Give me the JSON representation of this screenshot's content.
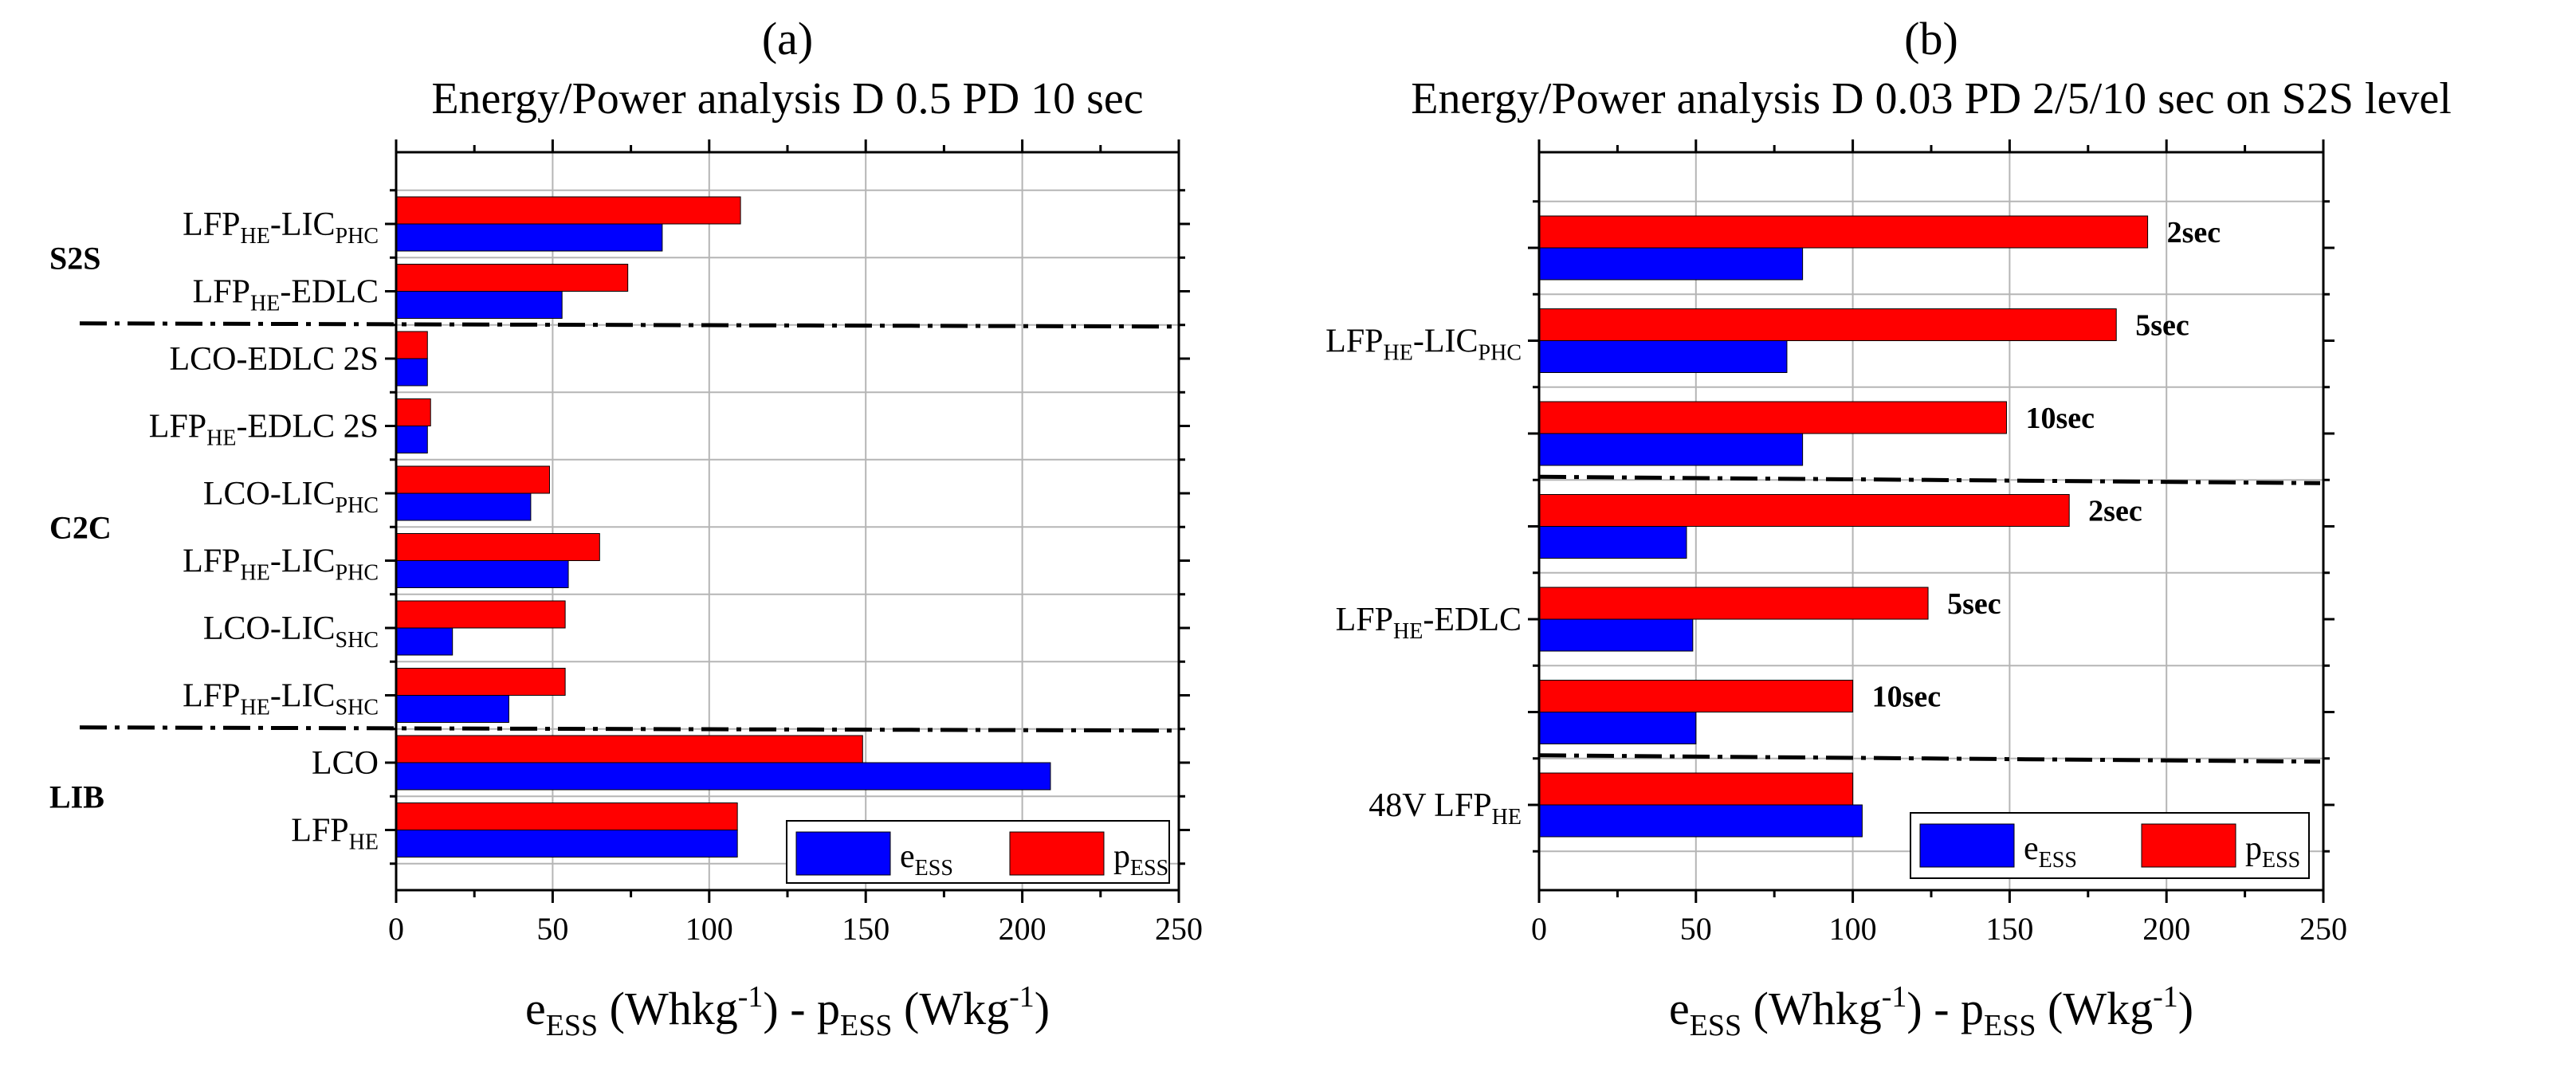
{
  "chart_data": [
    {
      "panel": "(a)",
      "type": "bar",
      "orientation": "horizontal",
      "title": "Energy/Power analysis D 0.5 PD 10 sec",
      "xlabel": {
        "e": "e",
        "e_sub": "ESS",
        "e_unit": " (Whkg",
        "e_exp": "-1",
        "mid": ") - p",
        "p_sub": "ESS",
        "p_unit": " (Wkg",
        "p_exp": "-1",
        "end": ")"
      },
      "xlim": [
        0,
        250
      ],
      "xticks": [
        0,
        50,
        100,
        150,
        200,
        250
      ],
      "grid": true,
      "legend": {
        "position": "bottom-right",
        "entries": [
          {
            "main": "e",
            "sub": "ESS",
            "color": "#0000ff"
          },
          {
            "main": "p",
            "sub": "ESS",
            "color": "#ff0000"
          }
        ]
      },
      "groups": [
        {
          "label": "S2S",
          "rows": [
            0,
            1
          ]
        },
        {
          "label": "C2C",
          "rows": [
            2,
            7
          ]
        },
        {
          "label": "LIB",
          "rows": [
            8,
            9
          ]
        }
      ],
      "separators_after_rows": [
        1,
        7
      ],
      "categories": [
        {
          "main": "LFP",
          "sub": "HE",
          "rest": "-LIC",
          "sub2": "PHC",
          "tail": ""
        },
        {
          "main": "LFP",
          "sub": "HE",
          "rest": "-EDLC",
          "sub2": "",
          "tail": ""
        },
        {
          "main": "LCO-EDLC 2S",
          "sub": "",
          "rest": "",
          "sub2": "",
          "tail": ""
        },
        {
          "main": "LFP",
          "sub": "HE",
          "rest": "-EDLC 2S",
          "sub2": "",
          "tail": ""
        },
        {
          "main": "LCO-LIC",
          "sub": "PHC",
          "rest": "",
          "sub2": "",
          "tail": ""
        },
        {
          "main": "LFP",
          "sub": "HE",
          "rest": "-LIC",
          "sub2": "PHC",
          "tail": ""
        },
        {
          "main": "LCO-LIC",
          "sub": "SHC",
          "rest": "",
          "sub2": "",
          "tail": ""
        },
        {
          "main": "LFP",
          "sub": "HE",
          "rest": "-LIC",
          "sub2": "SHC",
          "tail": ""
        },
        {
          "main": "LCO",
          "sub": "",
          "rest": "",
          "sub2": "",
          "tail": ""
        },
        {
          "main": "LFP",
          "sub": "HE",
          "rest": "",
          "sub2": "",
          "tail": ""
        }
      ],
      "series": [
        {
          "name": "pESS",
          "color": "#ff0000",
          "values": [
            110,
            74,
            10,
            11,
            49,
            65,
            54,
            54,
            149,
            109
          ]
        },
        {
          "name": "eESS",
          "color": "#0000ff",
          "values": [
            85,
            53,
            10,
            10,
            43,
            55,
            18,
            36,
            209,
            109
          ]
        }
      ]
    },
    {
      "panel": "(b)",
      "type": "bar",
      "orientation": "horizontal",
      "title": "Energy/Power analysis D 0.03 PD 2/5/10 sec on S2S level",
      "xlabel": {
        "e": "e",
        "e_sub": "ESS",
        "e_unit": " (Whkg",
        "e_exp": "-1",
        "mid": ") - p",
        "p_sub": "ESS",
        "p_unit": " (Wkg",
        "p_exp": "-1",
        "end": ")"
      },
      "xlim": [
        0,
        250
      ],
      "xticks": [
        0,
        50,
        100,
        150,
        200,
        250
      ],
      "grid": true,
      "legend": {
        "position": "bottom-right",
        "entries": [
          {
            "main": "e",
            "sub": "ESS",
            "color": "#0000ff"
          },
          {
            "main": "p",
            "sub": "ESS",
            "color": "#ff0000"
          }
        ]
      },
      "group_labels": [
        {
          "main": "LFP",
          "sub": "HE",
          "rest": "-LIC",
          "sub2": "PHC",
          "rows": [
            0,
            2
          ]
        },
        {
          "main": "LFP",
          "sub": "HE",
          "rest": "-EDLC",
          "sub2": "",
          "rows": [
            3,
            5
          ]
        },
        {
          "main": "48V LFP",
          "sub": "HE",
          "rest": "",
          "sub2": "",
          "rows": [
            6,
            6
          ]
        }
      ],
      "separators_after_rows": [
        2,
        5
      ],
      "row_labels": [
        "2sec",
        "5sec",
        "10sec",
        "2sec",
        "5sec",
        "10sec",
        ""
      ],
      "series": [
        {
          "name": "pESS",
          "color": "#ff0000",
          "values": [
            194,
            184,
            149,
            169,
            124,
            100,
            100
          ]
        },
        {
          "name": "eESS",
          "color": "#0000ff",
          "values": [
            84,
            79,
            84,
            47,
            49,
            50,
            103
          ]
        }
      ]
    }
  ]
}
